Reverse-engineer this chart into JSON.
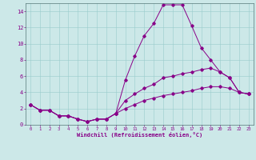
{
  "xlabel": "Windchill (Refroidissement éolien,°C)",
  "xlim": [
    -0.5,
    23.5
  ],
  "ylim": [
    0,
    15
  ],
  "xticks": [
    0,
    1,
    2,
    3,
    4,
    5,
    6,
    7,
    8,
    9,
    10,
    11,
    12,
    13,
    14,
    15,
    16,
    17,
    18,
    19,
    20,
    21,
    22,
    23
  ],
  "yticks": [
    0,
    2,
    4,
    6,
    8,
    10,
    12,
    14
  ],
  "bg_color": "#cce8e8",
  "line_color": "#880088",
  "series": [
    {
      "x": [
        0,
        1,
        2,
        3,
        4,
        5,
        6,
        7,
        8,
        9,
        10,
        11,
        12,
        13,
        14,
        15,
        16,
        17,
        18,
        19,
        20,
        21,
        22,
        23
      ],
      "y": [
        2.5,
        1.8,
        1.8,
        1.1,
        1.1,
        0.7,
        0.4,
        0.7,
        0.7,
        1.4,
        5.5,
        8.5,
        11.0,
        12.5,
        14.8,
        14.8,
        14.8,
        12.2,
        9.5,
        8.0,
        6.5,
        5.8,
        4.0,
        3.8
      ]
    },
    {
      "x": [
        0,
        1,
        2,
        3,
        4,
        5,
        6,
        7,
        8,
        9,
        10,
        11,
        12,
        13,
        14,
        15,
        16,
        17,
        18,
        19,
        20,
        21,
        22,
        23
      ],
      "y": [
        2.5,
        1.8,
        1.8,
        1.1,
        1.1,
        0.7,
        0.4,
        0.7,
        0.7,
        1.4,
        3.0,
        3.8,
        4.5,
        5.0,
        5.8,
        6.0,
        6.3,
        6.5,
        6.8,
        7.0,
        6.5,
        5.8,
        4.0,
        3.8
      ]
    },
    {
      "x": [
        0,
        1,
        2,
        3,
        4,
        5,
        6,
        7,
        8,
        9,
        10,
        11,
        12,
        13,
        14,
        15,
        16,
        17,
        18,
        19,
        20,
        21,
        22,
        23
      ],
      "y": [
        2.5,
        1.8,
        1.8,
        1.1,
        1.1,
        0.7,
        0.4,
        0.7,
        0.7,
        1.4,
        2.0,
        2.5,
        3.0,
        3.3,
        3.6,
        3.8,
        4.0,
        4.2,
        4.5,
        4.7,
        4.7,
        4.5,
        4.0,
        3.8
      ]
    }
  ]
}
